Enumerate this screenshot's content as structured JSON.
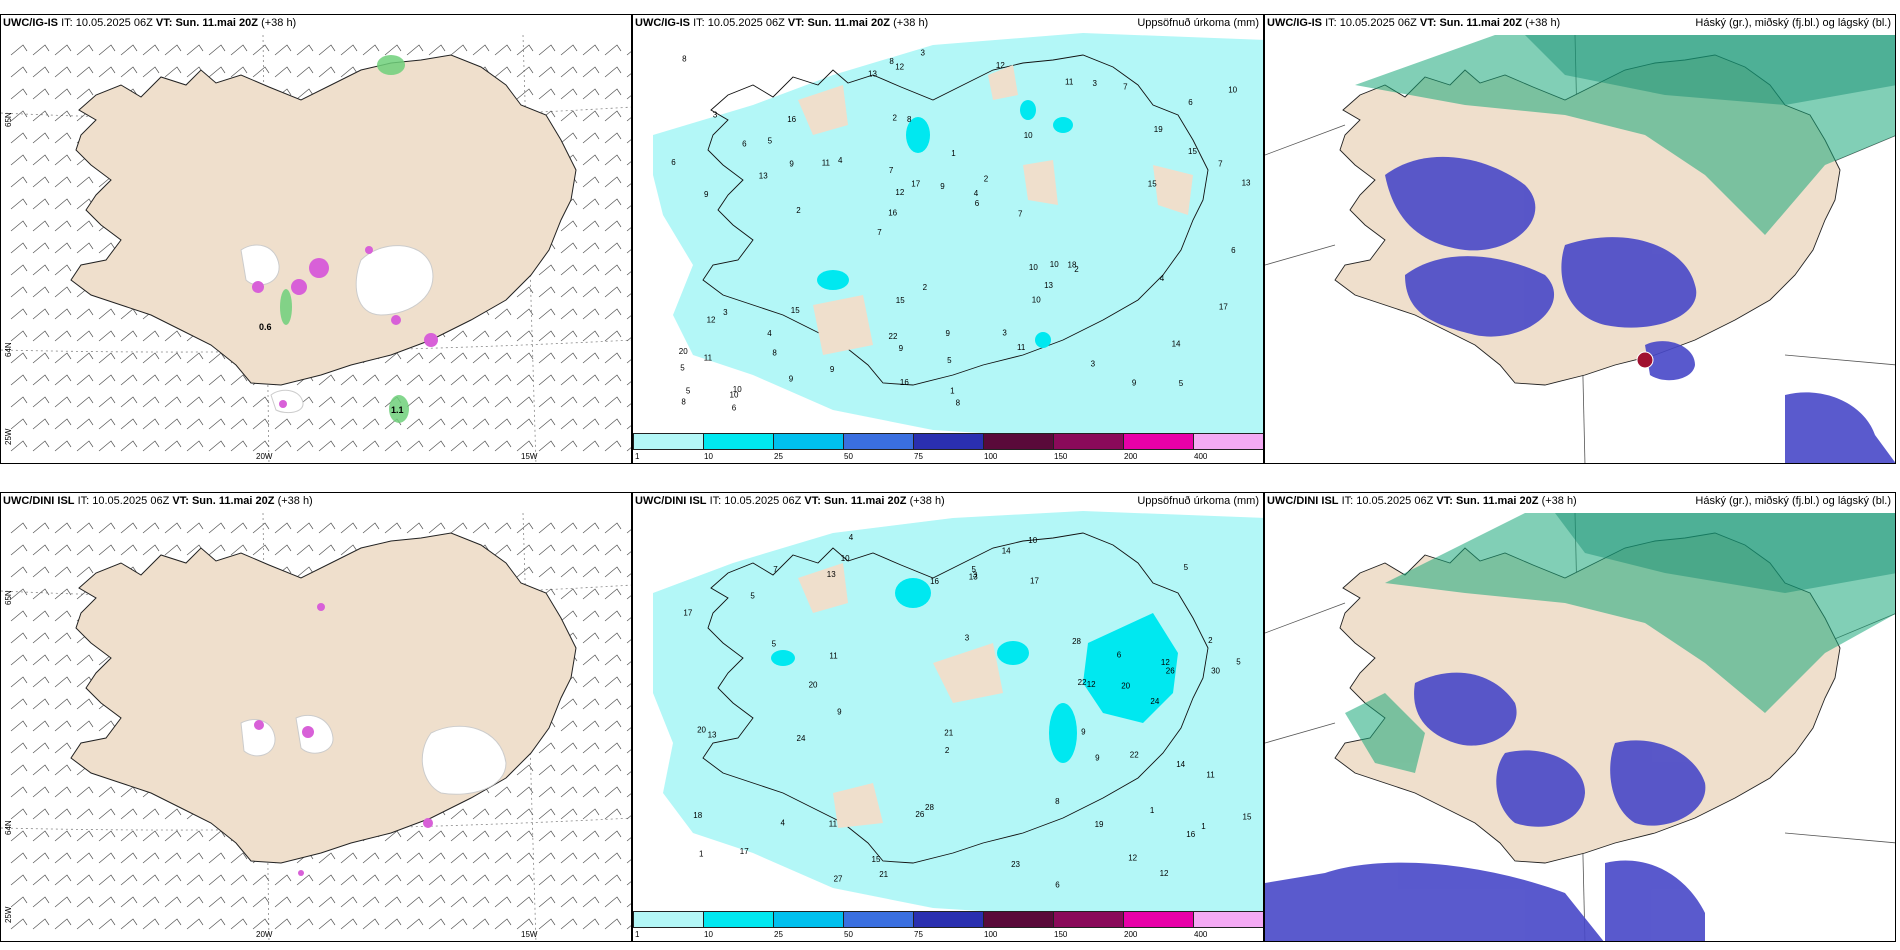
{
  "rows": [
    {
      "model": "UWC/IG-IS",
      "it_label": "IT:",
      "it_value": "10.05.2025 06Z",
      "vt_label": "VT:",
      "vt_value": "Sun. 11.mai 20Z",
      "lead": "(+38 h)",
      "wind_values": [
        "0.6",
        "1.1"
      ]
    },
    {
      "model": "UWC/DINI ISL",
      "it_label": "IT:",
      "it_value": "10.05.2025 06Z",
      "vt_label": "VT:",
      "vt_value": "Sun. 11.mai 20Z",
      "lead": "(+38 h)",
      "wind_values": []
    }
  ],
  "precip_title": "Uppsöfnuð úrkoma (mm)",
  "cloud_title": "Háský (gr.), miðský (fj.bl.) og lágský (bl.)",
  "lat_labels": [
    "65N",
    "64N",
    "25W"
  ],
  "lon_labels": [
    "20W",
    "15W"
  ],
  "colorbar": {
    "colors": [
      "#b3f7f7",
      "#00e8f0",
      "#00c0ee",
      "#3a6fe0",
      "#2a2fb0",
      "#5a0a3a",
      "#8a0a5a",
      "#e800a8",
      "#f4aaf4"
    ],
    "labels": [
      "1",
      "10",
      "25",
      "50",
      "75",
      "100",
      "150",
      "200",
      "400"
    ]
  },
  "precip_numbers_top": [
    "5",
    "9",
    "6",
    "7",
    "10",
    "10",
    "2",
    "1",
    "3",
    "4",
    "5",
    "8",
    "8",
    "2",
    "2",
    "3",
    "12",
    "13",
    "10",
    "15",
    "16",
    "22",
    "12",
    "16",
    "11",
    "15",
    "9",
    "14",
    "18",
    "8",
    "11",
    "13",
    "10",
    "9",
    "7",
    "4",
    "5",
    "9",
    "6",
    "12",
    "19",
    "10",
    "13",
    "11",
    "4",
    "6",
    "8",
    "9",
    "7",
    "3",
    "2",
    "6",
    "5",
    "3",
    "10",
    "12",
    "13",
    "17",
    "17",
    "15",
    "9",
    "10",
    "9",
    "20",
    "8",
    "6",
    "6",
    "7",
    "5",
    "9",
    "11",
    "7",
    "4",
    "16",
    "15",
    "2",
    "3",
    "1",
    "3",
    "8"
  ],
  "precip_numbers_bottom": [
    "1",
    "2",
    "1",
    "3",
    "1",
    "10",
    "12",
    "11",
    "5",
    "5",
    "30",
    "17",
    "24",
    "21",
    "18",
    "5",
    "16",
    "13",
    "28",
    "26",
    "20",
    "13",
    "23",
    "22",
    "15",
    "26",
    "14",
    "17",
    "28",
    "15",
    "24",
    "19",
    "27",
    "21",
    "14",
    "12",
    "12",
    "16",
    "12",
    "9",
    "22",
    "20",
    "13",
    "20",
    "11",
    "9",
    "17",
    "10",
    "11",
    "6",
    "4",
    "2",
    "3",
    "5",
    "8",
    "9",
    "4",
    "7",
    "6",
    "5"
  ]
}
